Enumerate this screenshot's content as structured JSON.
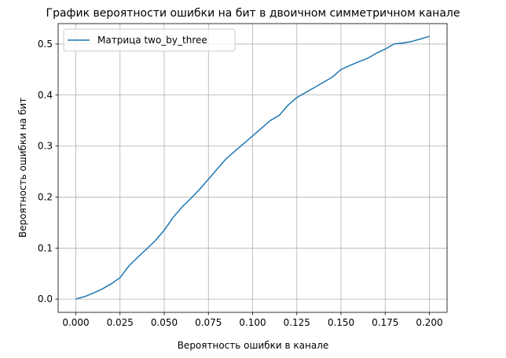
{
  "chart_data": {
    "type": "line",
    "title": "График вероятности ошибки на бит в двоичном симметричном канале",
    "xlabel": "Вероятность ошибки в канале",
    "ylabel": "Вероятность ошибки на бит",
    "xlim": [
      -0.01,
      0.21
    ],
    "ylim": [
      -0.026,
      0.54
    ],
    "xticks": [
      0.0,
      0.025,
      0.05,
      0.075,
      0.1,
      0.125,
      0.15,
      0.175,
      0.2
    ],
    "xtick_labels": [
      "0.000",
      "0.025",
      "0.050",
      "0.075",
      "0.100",
      "0.125",
      "0.150",
      "0.175",
      "0.200"
    ],
    "yticks": [
      0.0,
      0.1,
      0.2,
      0.3,
      0.4,
      0.5
    ],
    "ytick_labels": [
      "0.0",
      "0.1",
      "0.2",
      "0.3",
      "0.4",
      "0.5"
    ],
    "grid": true,
    "legend_position": "top-left",
    "series": [
      {
        "name": "Матрица two_by_three",
        "color": "#1f77b4",
        "x": [
          0.0,
          0.005,
          0.01,
          0.015,
          0.02,
          0.025,
          0.03,
          0.035,
          0.04,
          0.045,
          0.05,
          0.055,
          0.06,
          0.065,
          0.07,
          0.075,
          0.08,
          0.085,
          0.09,
          0.095,
          0.1,
          0.105,
          0.11,
          0.115,
          0.12,
          0.125,
          0.13,
          0.135,
          0.14,
          0.145,
          0.15,
          0.155,
          0.16,
          0.165,
          0.17,
          0.175,
          0.18,
          0.185,
          0.19,
          0.195,
          0.2
        ],
        "y": [
          0.0,
          0.005,
          0.012,
          0.02,
          0.03,
          0.042,
          0.065,
          0.082,
          0.098,
          0.115,
          0.135,
          0.16,
          0.18,
          0.197,
          0.215,
          0.235,
          0.255,
          0.275,
          0.29,
          0.305,
          0.32,
          0.335,
          0.35,
          0.36,
          0.38,
          0.395,
          0.405,
          0.415,
          0.425,
          0.435,
          0.45,
          0.458,
          0.465,
          0.472,
          0.482,
          0.49,
          0.5,
          0.502,
          0.505,
          0.51,
          0.515
        ]
      }
    ]
  }
}
